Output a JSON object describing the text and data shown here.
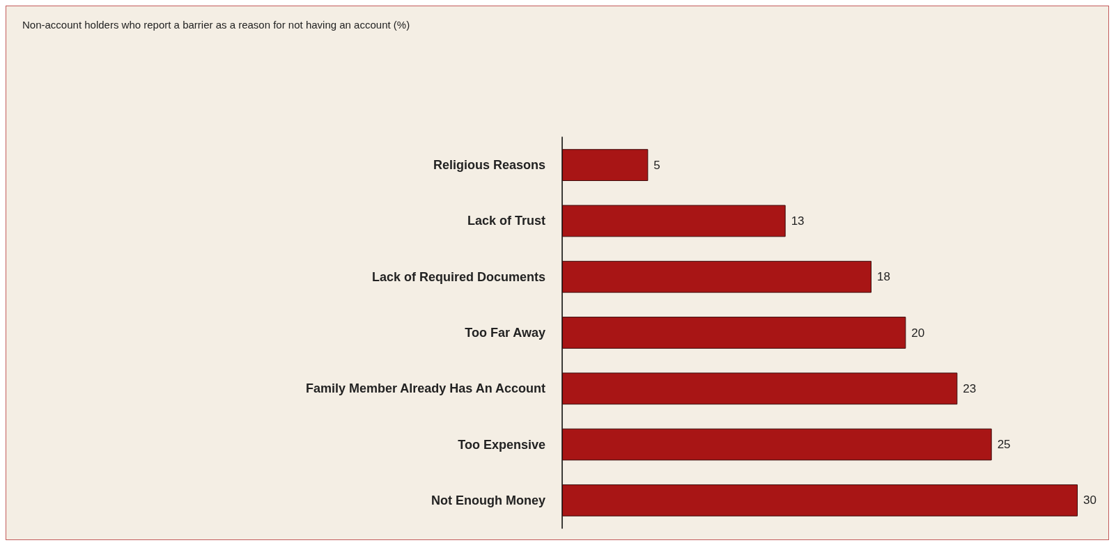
{
  "chart_data": {
    "type": "bar",
    "orientation": "horizontal",
    "title": "Non-account holders who report a barrier as a reason for not having an account (%)",
    "categories": [
      "Religious Reasons",
      "Lack of Trust",
      "Lack of Required Documents",
      "Too Far Away",
      "Family Member Already Has An Account",
      "Too Expensive",
      "Not Enough Money"
    ],
    "values": [
      5,
      13,
      18,
      20,
      23,
      25,
      30
    ],
    "color": "#a81515",
    "data_labels": true
  }
}
